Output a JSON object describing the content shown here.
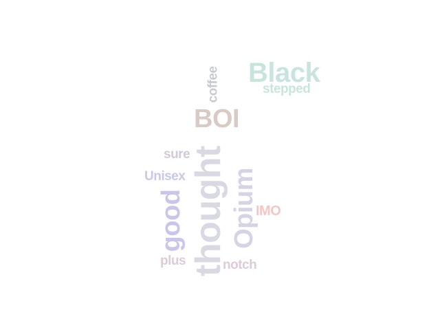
{
  "word_cloud": {
    "words": [
      {
        "id": "black",
        "text": "Black",
        "color": "#c9e4df"
      },
      {
        "id": "stepped",
        "text": "stepped",
        "color": "#c9e4df"
      },
      {
        "id": "coffee",
        "text": "coffee",
        "color": "#c7cbd0"
      },
      {
        "id": "boi",
        "text": "BOI",
        "color": "#d8cbc6"
      },
      {
        "id": "sure",
        "text": "sure",
        "color": "#d2c9d9"
      },
      {
        "id": "unisex",
        "text": "Unisex",
        "color": "#c7c9e6"
      },
      {
        "id": "thought",
        "text": "thought",
        "color": "#d9d9e4"
      },
      {
        "id": "opium",
        "text": "Opium",
        "color": "#d6d4e4"
      },
      {
        "id": "good",
        "text": "good",
        "color": "#c9c6ea"
      },
      {
        "id": "imo",
        "text": "IMO",
        "color": "#f3c7c7"
      },
      {
        "id": "plus",
        "text": "plus",
        "color": "#dccbd8"
      },
      {
        "id": "notch",
        "text": "notch",
        "color": "#dccbd8"
      }
    ]
  }
}
